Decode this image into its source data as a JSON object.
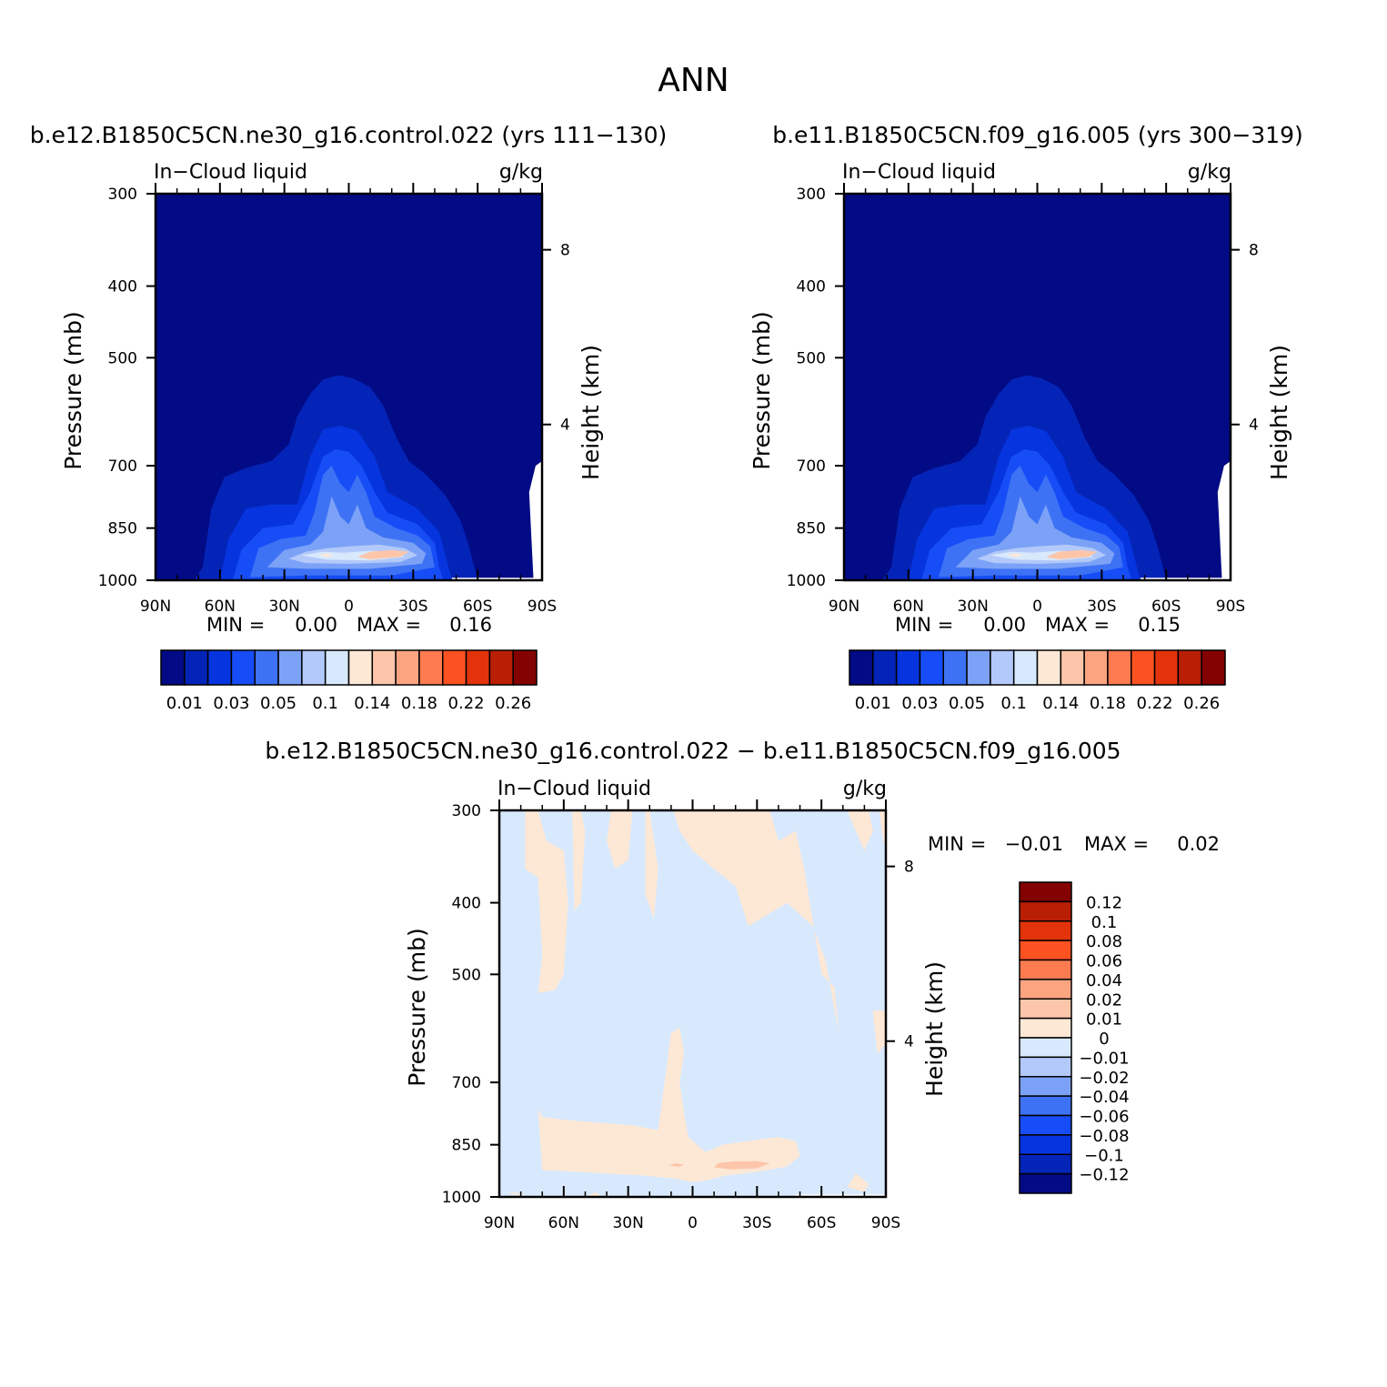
{
  "figure": {
    "title": "ANN"
  },
  "chart_data": [
    {
      "type": "heatmap",
      "title": "b.e12.B1850C5CN.ne30_g16.control.022 (yrs 111-130)",
      "subtitle_left": "In-Cloud liquid",
      "units": "g/kg",
      "ylabel": "Pressure (mb)",
      "y2label": "Height (km)",
      "x_ticks": [
        "90N",
        "60N",
        "30N",
        "0",
        "30S",
        "60S",
        "90S"
      ],
      "x_values": [
        90,
        60,
        30,
        0,
        -30,
        -60,
        -90
      ],
      "xlim": [
        90,
        -90
      ],
      "y_ticks": [
        300,
        400,
        500,
        700,
        850,
        1000
      ],
      "ylim": [
        300,
        1000
      ],
      "y_scale": "log",
      "y2_ticks": [
        8,
        4
      ],
      "min_label": "MIN =",
      "min_value": "0.00",
      "max_label": "MAX =",
      "max_value": "0.16",
      "colorbar": {
        "orientation": "horizontal",
        "labels": [
          "0.01",
          "0.03",
          "0.05",
          "0.1",
          "0.14",
          "0.18",
          "0.22",
          "0.26"
        ],
        "colors": [
          "#020b85",
          "#0424b8",
          "#0635df",
          "#164df7",
          "#3e72f4",
          "#7ca2f7",
          "#b2c9fa",
          "#d8e9fd",
          "#fde8d6",
          "#fdc6aa",
          "#fca480",
          "#fd7b4f",
          "#fc5221",
          "#e3330b",
          "#b91f05",
          "#840202"
        ]
      }
    },
    {
      "type": "heatmap",
      "title": "b.e11.B1850C5CN.f09_g16.005 (yrs 300-319)",
      "subtitle_left": "In-Cloud liquid",
      "units": "g/kg",
      "ylabel": "Pressure (mb)",
      "y2label": "Height (km)",
      "x_ticks": [
        "90N",
        "60N",
        "30N",
        "0",
        "30S",
        "60S",
        "90S"
      ],
      "x_values": [
        90,
        60,
        30,
        0,
        -30,
        -60,
        -90
      ],
      "xlim": [
        90,
        -90
      ],
      "y_ticks": [
        300,
        400,
        500,
        700,
        850,
        1000
      ],
      "ylim": [
        300,
        1000
      ],
      "y_scale": "log",
      "y2_ticks": [
        8,
        4
      ],
      "min_label": "MIN =",
      "min_value": "0.00",
      "max_label": "MAX =",
      "max_value": "0.15",
      "colorbar": {
        "orientation": "horizontal",
        "labels": [
          "0.01",
          "0.03",
          "0.05",
          "0.1",
          "0.14",
          "0.18",
          "0.22",
          "0.26"
        ],
        "colors": [
          "#020b85",
          "#0424b8",
          "#0635df",
          "#164df7",
          "#3e72f4",
          "#7ca2f7",
          "#b2c9fa",
          "#d8e9fd",
          "#fde8d6",
          "#fdc6aa",
          "#fca480",
          "#fd7b4f",
          "#fc5221",
          "#e3330b",
          "#b91f05",
          "#840202"
        ]
      }
    },
    {
      "type": "heatmap",
      "title": "b.e12.B1850C5CN.ne30_g16.control.022 - b.e11.B1850C5CN.f09_g16.005",
      "subtitle_left": "In-Cloud liquid",
      "units": "g/kg",
      "ylabel": "Pressure (mb)",
      "y2label": "Height (km)",
      "x_ticks": [
        "90N",
        "60N",
        "30N",
        "0",
        "30S",
        "60S",
        "90S"
      ],
      "x_values": [
        90,
        60,
        30,
        0,
        -30,
        -60,
        -90
      ],
      "xlim": [
        90,
        -90
      ],
      "y_ticks": [
        300,
        400,
        500,
        700,
        850,
        1000
      ],
      "ylim": [
        300,
        1000
      ],
      "y_scale": "log",
      "y2_ticks": [
        8,
        4
      ],
      "min_label": "MIN =",
      "min_value": "-0.01",
      "max_label": "MAX =",
      "max_value": "0.02",
      "colorbar": {
        "orientation": "vertical",
        "labels": [
          "0.12",
          "0.1",
          "0.08",
          "0.06",
          "0.04",
          "0.02",
          "0.01",
          "0",
          "-0.01",
          "-0.02",
          "-0.04",
          "-0.06",
          "-0.08",
          "-0.1",
          "-0.12"
        ],
        "colors": [
          "#840202",
          "#b91f05",
          "#e3330b",
          "#fc5221",
          "#fd7b4f",
          "#fca480",
          "#fdc6aa",
          "#fde8d6",
          "#d8e9fd",
          "#b2c9fa",
          "#7ca2f7",
          "#3e72f4",
          "#164df7",
          "#0635df",
          "#0424b8",
          "#020b85"
        ]
      }
    }
  ]
}
